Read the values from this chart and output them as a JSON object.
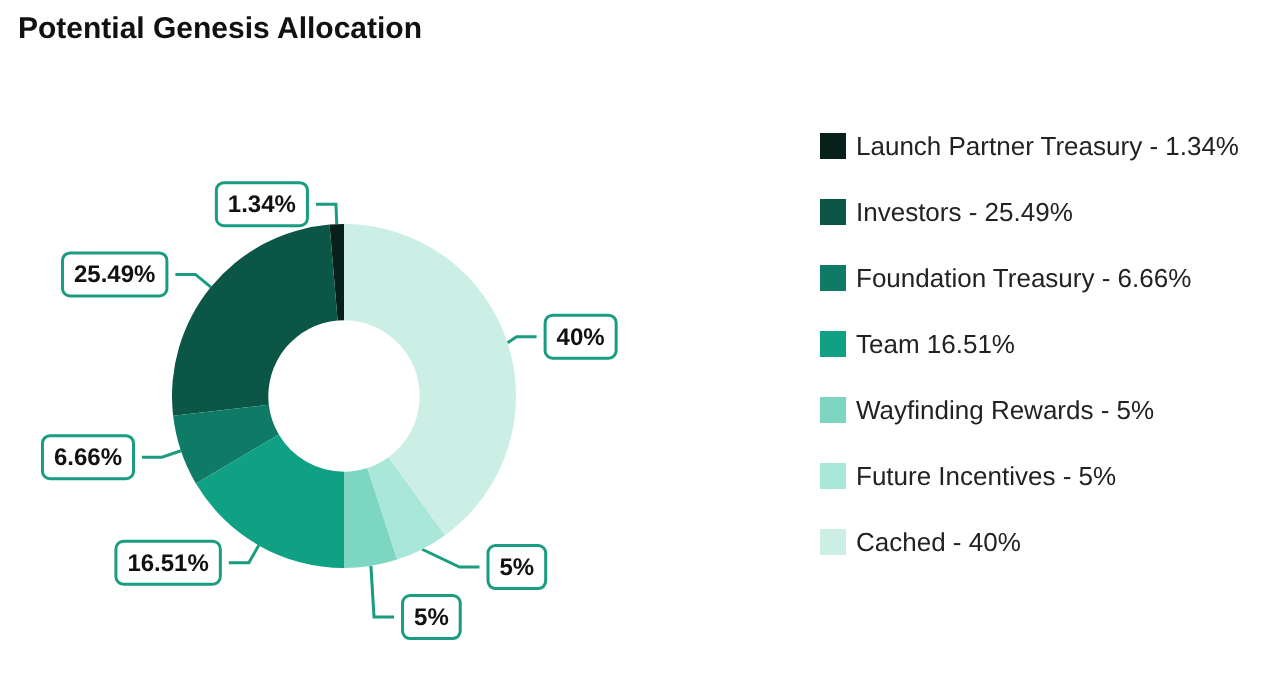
{
  "chart_data": {
    "type": "donut",
    "title": "Potential Genesis Allocation",
    "categories": [
      "Launch Partner Treasury - 1.34%",
      "Investors - 25.49%",
      "Foundation Treasury - 6.66%",
      "Team 16.51%",
      "Wayfinding Rewards - 5%",
      "Future Incentives - 5%",
      "Cached - 40%"
    ],
    "values": [
      1.34,
      25.49,
      6.66,
      16.51,
      5,
      5,
      40
    ],
    "value_labels": [
      "1.34%",
      "25.49%",
      "6.66%",
      "16.51%",
      "5%",
      "5%",
      "40%"
    ],
    "colors": [
      "#08201a",
      "#0b5646",
      "#0f7b66",
      "#10a083",
      "#7dd6c1",
      "#a9e7d8",
      "#cbeee5"
    ],
    "legend": "right"
  }
}
